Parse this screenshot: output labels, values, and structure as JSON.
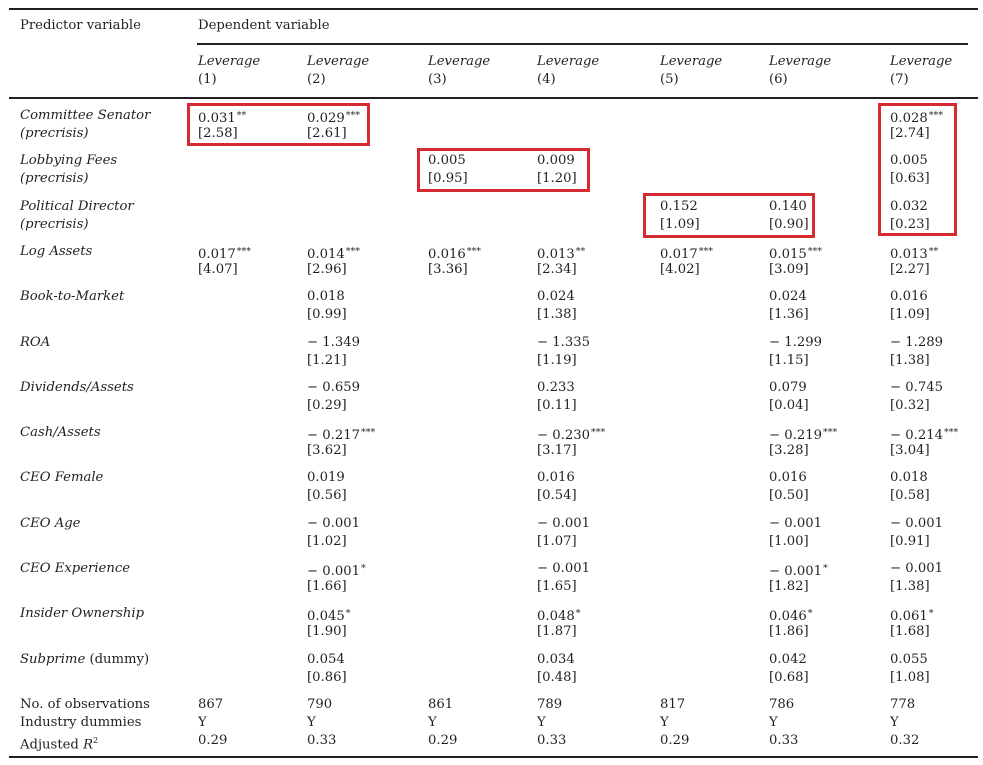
{
  "header": {
    "predictor_label": "Predictor variable",
    "dependent_label": "Dependent variable",
    "columns": [
      {
        "name": "Leverage",
        "num": "(1)"
      },
      {
        "name": "Leverage",
        "num": "(2)"
      },
      {
        "name": "Leverage",
        "num": "(3)"
      },
      {
        "name": "Leverage",
        "num": "(4)"
      },
      {
        "name": "Leverage",
        "num": "(5)"
      },
      {
        "name": "Leverage",
        "num": "(6)"
      },
      {
        "name": "Leverage",
        "num": "(7)"
      }
    ]
  },
  "rows": [
    {
      "label": "Committee Senator",
      "sub": "(precrisis)",
      "cells": [
        {
          "v": "0.031",
          "s": "**",
          "t": "[2.58]"
        },
        {
          "v": "0.029",
          "s": "***",
          "t": "[2.61]"
        },
        null,
        null,
        null,
        null,
        {
          "v": "0.028",
          "s": "***",
          "t": "[2.74]"
        }
      ]
    },
    {
      "label": "Lobbying Fees",
      "sub": "(precrisis)",
      "cells": [
        null,
        null,
        {
          "v": "0.005",
          "s": "",
          "t": "[0.95]"
        },
        {
          "v": "0.009",
          "s": "",
          "t": "[1.20]"
        },
        null,
        null,
        {
          "v": "0.005",
          "s": "",
          "t": "[0.63]"
        }
      ]
    },
    {
      "label": "Political Director",
      "sub": "(precrisis)",
      "cells": [
        null,
        null,
        null,
        null,
        {
          "v": "0.152",
          "s": "",
          "t": "[1.09]"
        },
        {
          "v": "0.140",
          "s": "",
          "t": "[0.90]"
        },
        {
          "v": "0.032",
          "s": "",
          "t": "[0.23]"
        }
      ]
    },
    {
      "label": "Log Assets",
      "sub": "",
      "cells": [
        {
          "v": "0.017",
          "s": "***",
          "t": "[4.07]"
        },
        {
          "v": "0.014",
          "s": "***",
          "t": "[2.96]"
        },
        {
          "v": "0.016",
          "s": "***",
          "t": "[3.36]"
        },
        {
          "v": "0.013",
          "s": "**",
          "t": "[2.34]"
        },
        {
          "v": "0.017",
          "s": "***",
          "t": "[4.02]"
        },
        {
          "v": "0.015",
          "s": "***",
          "t": "[3.09]"
        },
        {
          "v": "0.013",
          "s": "**",
          "t": "[2.27]"
        }
      ]
    },
    {
      "label": "Book-to-Market",
      "sub": "",
      "cells": [
        null,
        {
          "v": "0.018",
          "s": "",
          "t": "[0.99]"
        },
        null,
        {
          "v": "0.024",
          "s": "",
          "t": "[1.38]"
        },
        null,
        {
          "v": "0.024",
          "s": "",
          "t": "[1.36]"
        },
        {
          "v": "0.016",
          "s": "",
          "t": "[1.09]"
        }
      ]
    },
    {
      "label": "ROA",
      "sub": "",
      "cells": [
        null,
        {
          "v": "− 1.349",
          "s": "",
          "t": "[1.21]"
        },
        null,
        {
          "v": "− 1.335",
          "s": "",
          "t": "[1.19]"
        },
        null,
        {
          "v": "− 1.299",
          "s": "",
          "t": "[1.15]"
        },
        {
          "v": "− 1.289",
          "s": "",
          "t": "[1.38]"
        }
      ]
    },
    {
      "label": "Dividends/Assets",
      "sub": "",
      "cells": [
        null,
        {
          "v": "− 0.659",
          "s": "",
          "t": "[0.29]"
        },
        null,
        {
          "v": "0.233",
          "s": "",
          "t": "[0.11]"
        },
        null,
        {
          "v": "0.079",
          "s": "",
          "t": "[0.04]"
        },
        {
          "v": "− 0.745",
          "s": "",
          "t": "[0.32]"
        }
      ]
    },
    {
      "label": "Cash/Assets",
      "sub": "",
      "cells": [
        null,
        {
          "v": "− 0.217",
          "s": "***",
          "t": "[3.62]"
        },
        null,
        {
          "v": "− 0.230",
          "s": "***",
          "t": "[3.17]"
        },
        null,
        {
          "v": "− 0.219",
          "s": "***",
          "t": "[3.28]"
        },
        {
          "v": "− 0.214",
          "s": "***",
          "t": "[3.04]"
        }
      ]
    },
    {
      "label": "CEO Female",
      "sub": "",
      "cells": [
        null,
        {
          "v": "0.019",
          "s": "",
          "t": "[0.56]"
        },
        null,
        {
          "v": "0.016",
          "s": "",
          "t": "[0.54]"
        },
        null,
        {
          "v": "0.016",
          "s": "",
          "t": "[0.50]"
        },
        {
          "v": "0.018",
          "s": "",
          "t": "[0.58]"
        }
      ]
    },
    {
      "label": "CEO Age",
      "sub": "",
      "cells": [
        null,
        {
          "v": "− 0.001",
          "s": "",
          "t": "[1.02]"
        },
        null,
        {
          "v": "− 0.001",
          "s": "",
          "t": "[1.07]"
        },
        null,
        {
          "v": "− 0.001",
          "s": "",
          "t": "[1.00]"
        },
        {
          "v": "− 0.001",
          "s": "",
          "t": "[0.91]"
        }
      ]
    },
    {
      "label": "CEO Experience",
      "sub": "",
      "cells": [
        null,
        {
          "v": "− 0.001",
          "s": "*",
          "t": "[1.66]"
        },
        null,
        {
          "v": "− 0.001",
          "s": "",
          "t": "[1.65]"
        },
        null,
        {
          "v": "− 0.001",
          "s": "*",
          "t": "[1.82]"
        },
        {
          "v": "− 0.001",
          "s": "",
          "t": "[1.38]"
        }
      ]
    },
    {
      "label": "Insider Ownership",
      "sub": "",
      "cells": [
        null,
        {
          "v": "0.045",
          "s": "*",
          "t": "[1.90]"
        },
        null,
        {
          "v": "0.048",
          "s": "*",
          "t": "[1.87]"
        },
        null,
        {
          "v": "0.046",
          "s": "*",
          "t": "[1.86]"
        },
        {
          "v": "0.061",
          "s": "*",
          "t": "[1.68]"
        }
      ]
    },
    {
      "label": "Subprime",
      "label_suffix": " (dummy)",
      "sub": "",
      "cells": [
        null,
        {
          "v": "0.054",
          "s": "",
          "t": "[0.86]"
        },
        null,
        {
          "v": "0.034",
          "s": "",
          "t": "[0.48]"
        },
        null,
        {
          "v": "0.042",
          "s": "",
          "t": "[0.68]"
        },
        {
          "v": "0.055",
          "s": "",
          "t": "[1.08]"
        }
      ]
    }
  ],
  "footer": [
    {
      "label": "No. of observations",
      "values": [
        "867",
        "790",
        "861",
        "789",
        "817",
        "786",
        "778"
      ]
    },
    {
      "label": "Industry dummies",
      "values": [
        "Y",
        "Y",
        "Y",
        "Y",
        "Y",
        "Y",
        "Y"
      ]
    },
    {
      "label_pre": "Adjusted ",
      "label_italic": "R",
      "label_sup": "2",
      "values": [
        "0.29",
        "0.33",
        "0.29",
        "0.33",
        "0.29",
        "0.33",
        "0.32"
      ]
    }
  ],
  "highlight_color": "#d42a30"
}
